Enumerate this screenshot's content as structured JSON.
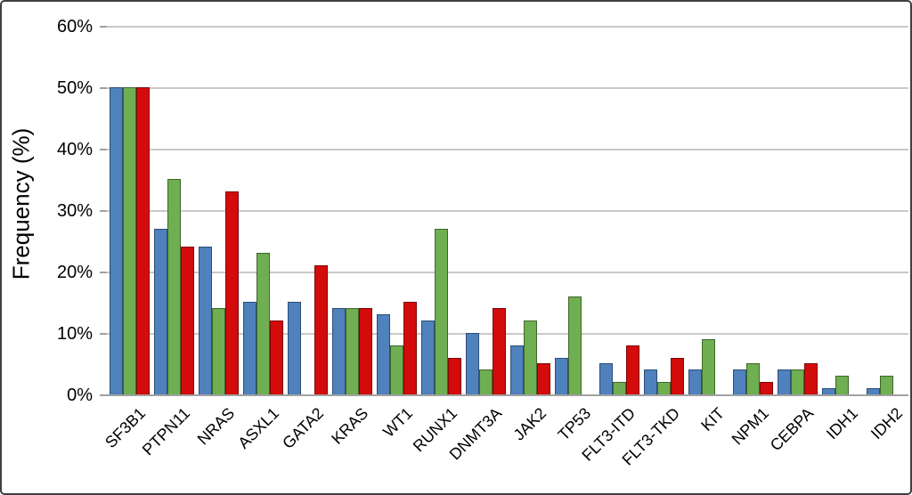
{
  "figure": {
    "background": "#ffffff",
    "border_color": "#404040",
    "gridline_color": "#c9c9c9",
    "axis_line_color": "#a1a1a1",
    "text_color": "#000000"
  },
  "chart_data": {
    "type": "bar",
    "title": "",
    "xlabel": "",
    "ylabel": "Frequency (%)",
    "ylim": [
      0,
      60
    ],
    "ytick_labels": [
      "0%",
      "10%",
      "20%",
      "30%",
      "40%",
      "50%",
      "60%"
    ],
    "grid": true,
    "legend_position": "none",
    "categories": [
      "SF3B1",
      "PTPN11",
      "NRAS",
      "ASXL1",
      "GATA2",
      "KRAS",
      "WT1",
      "RUNX1",
      "DNMT3A",
      "JAK2",
      "TP53",
      "FLT3-ITD",
      "FLT3-TKD",
      "KIT",
      "NPM1",
      "CEBPA",
      "IDH1",
      "IDH2"
    ],
    "series": [
      {
        "name": "blue-series",
        "color": "#4f81bd",
        "border_color": "#2c4d75",
        "values": [
          50,
          27,
          24,
          15,
          15,
          14,
          13,
          12,
          10,
          8,
          6,
          5,
          4,
          4,
          4,
          4,
          1,
          1
        ]
      },
      {
        "name": "green-series",
        "color": "#6fae51",
        "border_color": "#3f662c",
        "values": [
          50,
          35,
          14,
          23,
          0,
          14,
          8,
          27,
          4,
          12,
          16,
          2,
          2,
          9,
          5,
          4,
          3,
          3
        ]
      },
      {
        "name": "red-series",
        "color": "#d30b0b",
        "border_color": "#7e0606",
        "values": [
          50,
          24,
          33,
          12,
          21,
          14,
          15,
          6,
          14,
          5,
          0,
          8,
          6,
          0,
          2,
          5,
          0,
          0
        ]
      }
    ]
  }
}
